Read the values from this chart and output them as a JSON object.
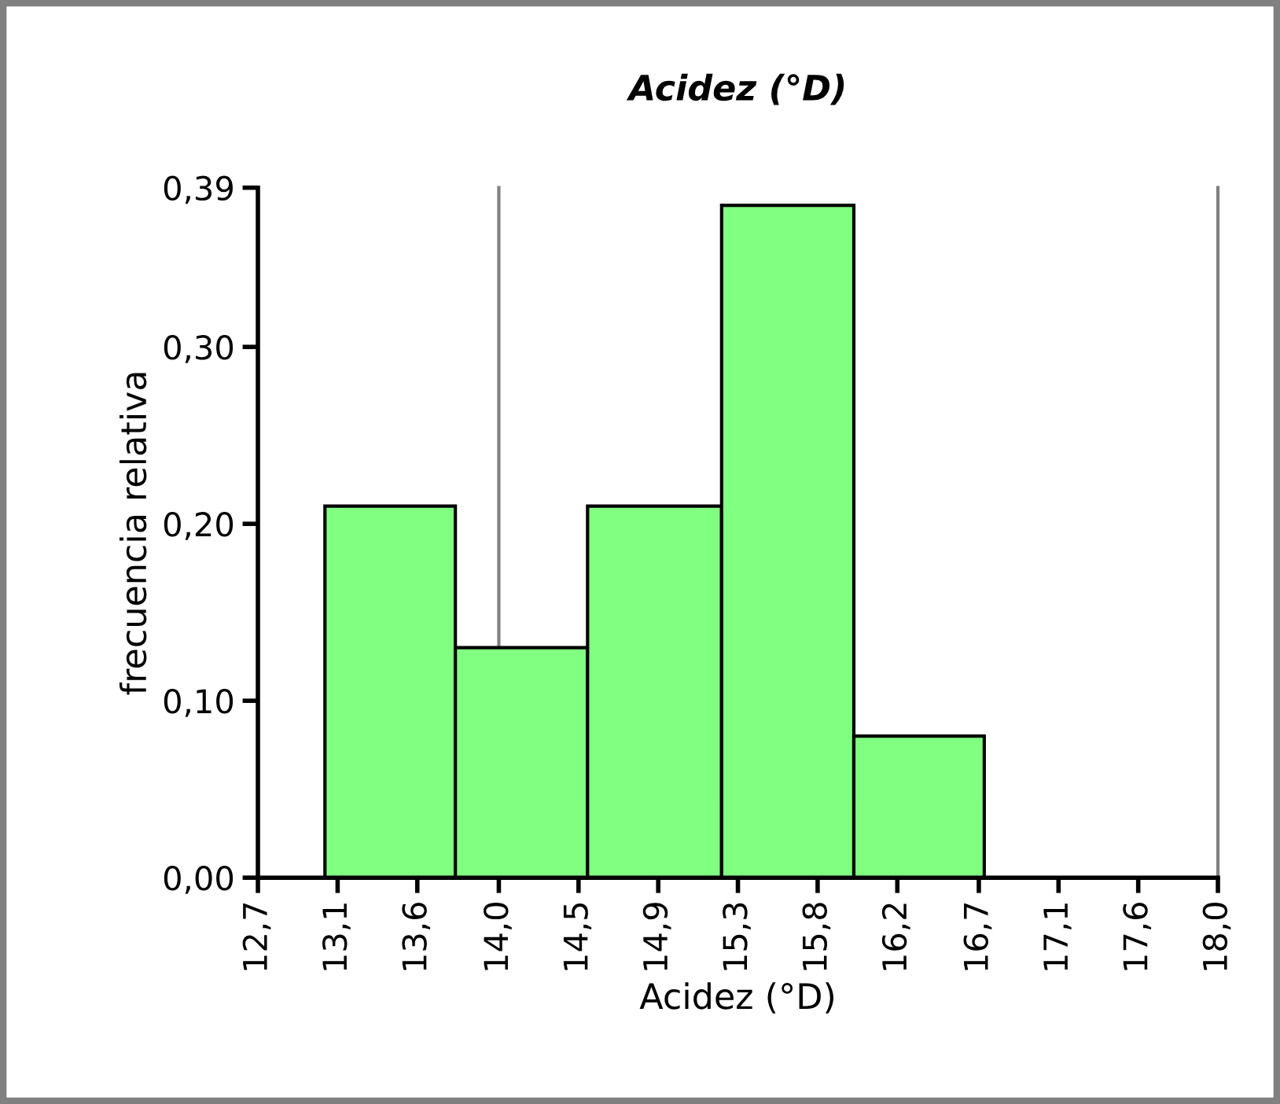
{
  "chart_data": {
    "type": "histogram",
    "title": "Acidez (°D)",
    "xlabel": "Acidez (°D)",
    "ylabel": "frecuencia relativa",
    "bins": [
      13.07,
      13.79,
      14.52,
      15.26,
      15.99,
      16.71
    ],
    "values": [
      0.21,
      0.13,
      0.21,
      0.38,
      0.08
    ],
    "color": "#80ff80",
    "xlim": [
      12.7,
      18.0
    ],
    "xticks": [
      {
        "value": 12.7,
        "label": "12,7"
      },
      {
        "value": 13.14,
        "label": "13,1"
      },
      {
        "value": 13.58,
        "label": "13,6"
      },
      {
        "value": 14.03,
        "label": "14,0"
      },
      {
        "value": 14.47,
        "label": "14,5"
      },
      {
        "value": 14.91,
        "label": "14,9"
      },
      {
        "value": 15.35,
        "label": "15,3"
      },
      {
        "value": 15.79,
        "label": "15,8"
      },
      {
        "value": 16.23,
        "label": "16,2"
      },
      {
        "value": 16.68,
        "label": "16,7"
      },
      {
        "value": 17.12,
        "label": "17,1"
      },
      {
        "value": 17.56,
        "label": "17,6"
      },
      {
        "value": 18.0,
        "label": "18,0"
      }
    ],
    "ylim": [
      0,
      0.39
    ],
    "yticks": [
      {
        "value": 0,
        "label": "0,00"
      },
      {
        "value": 0.1,
        "label": "0,10"
      },
      {
        "value": 0.2,
        "label": "0,20"
      },
      {
        "value": 0.3,
        "label": "0,30"
      },
      {
        "value": 0.39,
        "label": "0,39"
      }
    ],
    "ref_lines": [
      {
        "axis": "x",
        "value": 14.03,
        "label": null,
        "color": "#808080"
      }
    ],
    "grid": false,
    "legend": false
  }
}
